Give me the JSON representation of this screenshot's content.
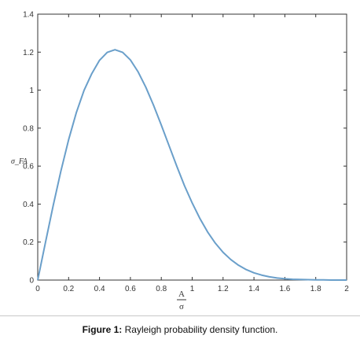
{
  "chart_data": {
    "type": "line",
    "title": "",
    "ylabel": "σ_FA",
    "xlabel_numerator": "A",
    "xlabel_denominator": "σ",
    "xlim": [
      0,
      2
    ],
    "ylim": [
      0,
      1.4
    ],
    "x_ticks": [
      0,
      0.2,
      0.4,
      0.6,
      0.8,
      1,
      1.2,
      1.4,
      1.6,
      1.8,
      2
    ],
    "x_tick_labels": [
      "0",
      "0.2",
      "0.4",
      "0.6",
      "0.8",
      "1",
      "1.2",
      "1.4",
      "1.6",
      "1.8",
      "2"
    ],
    "y_ticks": [
      0,
      0.2,
      0.4,
      0.6,
      0.8,
      1,
      1.2,
      1.4
    ],
    "y_tick_labels": [
      "0",
      "0.2",
      "0.4",
      "0.6",
      "0.8",
      "1",
      "1.2",
      "1.4"
    ],
    "grid": false,
    "line_color": "#6a9fca",
    "series": [
      {
        "x": [
          0,
          0.05,
          0.1,
          0.15,
          0.2,
          0.25,
          0.3,
          0.35,
          0.4,
          0.45,
          0.5,
          0.55,
          0.6,
          0.65,
          0.7,
          0.75,
          0.8,
          0.85,
          0.9,
          0.95,
          1.0,
          1.05,
          1.1,
          1.15,
          1.2,
          1.25,
          1.3,
          1.35,
          1.4,
          1.45,
          1.5,
          1.55,
          1.6,
          1.65,
          1.7,
          1.75,
          1.8,
          1.85,
          1.9,
          1.95,
          2.0
        ],
        "y": [
          0,
          0.198,
          0.392,
          0.574,
          0.739,
          0.882,
          0.999,
          1.087,
          1.157,
          1.199,
          1.213,
          1.199,
          1.159,
          1.096,
          1.015,
          0.92,
          0.816,
          0.708,
          0.6,
          0.497,
          0.406,
          0.324,
          0.253,
          0.194,
          0.146,
          0.108,
          0.078,
          0.055,
          0.038,
          0.026,
          0.017,
          0.011,
          0.007,
          0.004,
          0.003,
          0.002,
          0.001,
          0.001,
          0.0,
          0.0,
          0.0
        ]
      }
    ]
  },
  "caption": {
    "label": "Figure 1:",
    "text": " Rayleigh probability density function."
  }
}
